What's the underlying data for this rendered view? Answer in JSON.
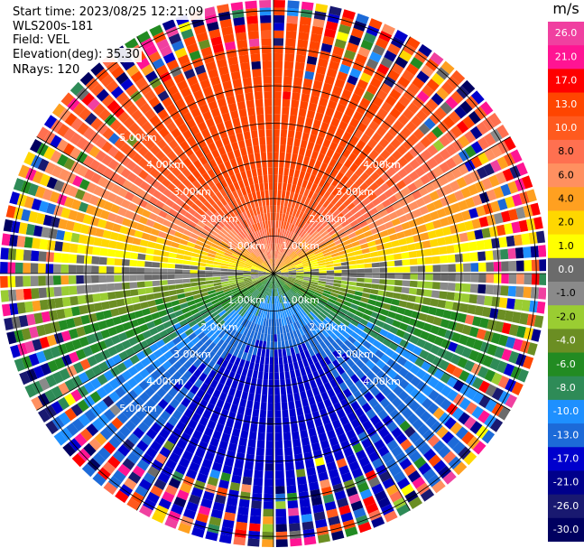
{
  "header": {
    "start_time": "Start time: 2023/08/25 12:21:09",
    "instrument": "WLS200s-181",
    "field": "Field: VEL",
    "elevation": "Elevation(deg): 35.30",
    "nrays": "NRays: 120"
  },
  "colorbar": {
    "unit": "m/s",
    "ticks": [
      "26.0",
      "21.0",
      "17.0",
      "13.0",
      "10.0",
      "8.0",
      "6.0",
      "4.0",
      "2.0",
      "1.0",
      "0.0",
      "-1.0",
      "-2.0",
      "-4.0",
      "-6.0",
      "-8.0",
      "-10.0",
      "-13.0",
      "-17.0",
      "-21.0",
      "-26.0",
      "-30.0"
    ],
    "colors": [
      "#f040a0",
      "#ff1493",
      "#ff0000",
      "#ff4500",
      "#ff5a1e",
      "#ff7050",
      "#ff9060",
      "#ffa020",
      "#ffd700",
      "#ffff00",
      "#6b6b6b",
      "#8a8a8a",
      "#9acd32",
      "#6b8e23",
      "#228b22",
      "#2e8b57",
      "#1e90ff",
      "#1c6ad8",
      "#0000cd",
      "#00008b",
      "#191970",
      "#000060"
    ]
  },
  "chart_data": {
    "type": "heatmap",
    "projection": "polar PPI",
    "field": "VEL",
    "units": "m/s",
    "nrays": 120,
    "elevation_deg": 35.3,
    "range_rings": [
      "1.00km",
      "2.00km",
      "3.00km",
      "4.00km",
      "5.00km"
    ],
    "value_range": [
      -30.0,
      26.0
    ],
    "pattern": "radial velocity: positive (orange/red) toward north, negative (blue) toward south, near-zero grey/yellow band east-west, noisy random colors at far range"
  }
}
